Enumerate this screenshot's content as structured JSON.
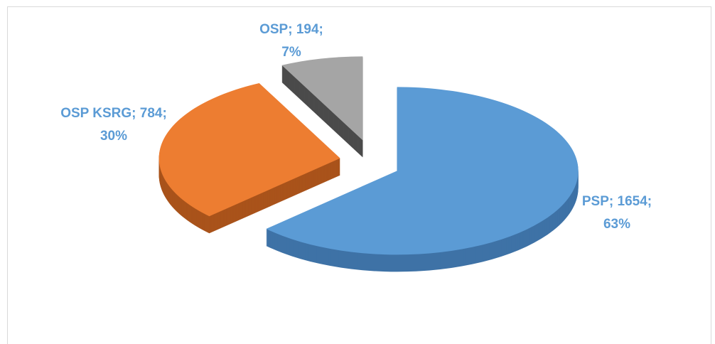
{
  "chart_data": {
    "type": "pie3d",
    "categories": [
      "PSP",
      "OSP KSRG",
      "OSP"
    ],
    "values": [
      1654,
      784,
      194
    ],
    "value_labels": [
      "PSP; 1654;",
      "OSP KSRG; 784;",
      "OSP; 194;"
    ],
    "percentages": [
      63,
      30,
      7
    ],
    "percentage_labels": [
      "63%",
      "30%",
      "7%"
    ],
    "colors": [
      "#5b9bd5",
      "#ed7d31",
      "#a5a5a5"
    ],
    "side_colors": [
      "#3e72a6",
      "#a9531b",
      "#4b4b4b"
    ],
    "label_color": "#5b9bd5"
  }
}
